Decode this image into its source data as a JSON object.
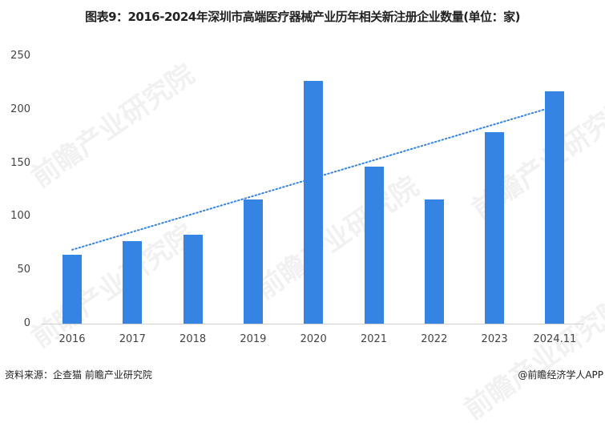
{
  "title": "图表9：2016-2024年深圳市高端医疗器械产业历年相关新注册企业数量(单位：家)",
  "footer": {
    "source": "资料来源：企查猫 前瞻产业研究院",
    "credit": "@前瞻经济学人APP"
  },
  "watermark": "前瞻产业研究院",
  "colors": {
    "bar": "#3584e4",
    "trend": "#3584e4",
    "axis": "#d0d0d0"
  },
  "chart_data": {
    "type": "bar",
    "title": "图表9：2016-2024年深圳市高端医疗器械产业历年相关新注册企业数量(单位：家)",
    "xlabel": "",
    "ylabel": "",
    "unit": "家",
    "categories": [
      "2016",
      "2017",
      "2018",
      "2019",
      "2020",
      "2021",
      "2022",
      "2023",
      "2024.11"
    ],
    "values": [
      64,
      77,
      83,
      116,
      227,
      147,
      116,
      179,
      217
    ],
    "ylim": [
      0,
      250
    ],
    "yticks": [
      "0",
      "50",
      "100",
      "150",
      "200",
      "250"
    ],
    "grid": false,
    "legend": null,
    "trendline": {
      "type": "linear",
      "style": "dotted",
      "start": 69,
      "end": 203
    }
  }
}
